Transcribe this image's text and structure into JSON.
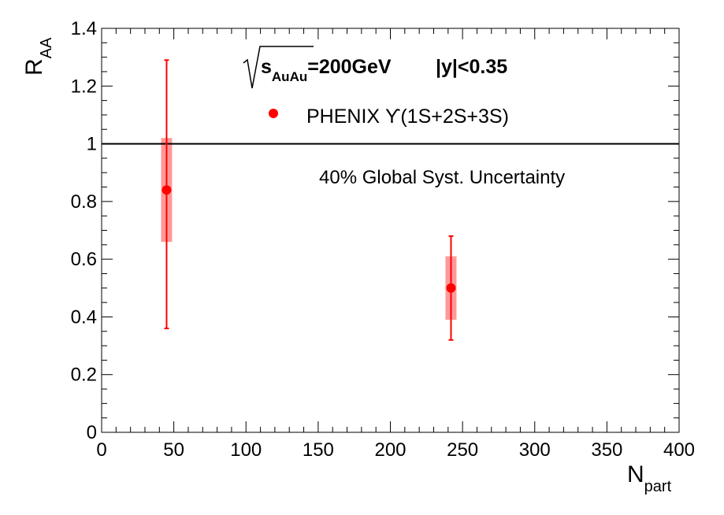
{
  "chart_data": {
    "type": "scatter",
    "xlim": [
      0,
      400
    ],
    "ylim": [
      0,
      1.4
    ],
    "x_ticks": [
      "0",
      "50",
      "100",
      "150",
      "200",
      "250",
      "300",
      "350",
      "400"
    ],
    "y_ticks": [
      "0",
      "0.2",
      "0.4",
      "0.6",
      "0.8",
      "1",
      "1.2",
      "1.4"
    ],
    "xlabel": {
      "main": "N",
      "sub": "part"
    },
    "ylabel": {
      "main": "R",
      "sub": "AA"
    },
    "reference_line": 1,
    "series": [
      {
        "name": "PHENIX ϒ(1S+2S+3S)",
        "color": "#ff0000",
        "syst_color": "#ff9999",
        "points": [
          {
            "x": 45,
            "y": 0.84,
            "stat_low": 0.36,
            "stat_high": 1.29,
            "syst_low": 0.66,
            "syst_high": 1.02
          },
          {
            "x": 242,
            "y": 0.5,
            "stat_low": 0.32,
            "stat_high": 0.68,
            "syst_low": 0.39,
            "syst_high": 0.61
          }
        ]
      }
    ],
    "annotations": {
      "energy_prefix": "s",
      "energy_sub": "AuAu",
      "energy_value": "=200GeV",
      "rapidity": "|y|<0.35",
      "global_syst": "40% Global Syst. Uncertainty"
    },
    "legend_text": "PHENIX ϒ(1S+2S+3S)"
  }
}
